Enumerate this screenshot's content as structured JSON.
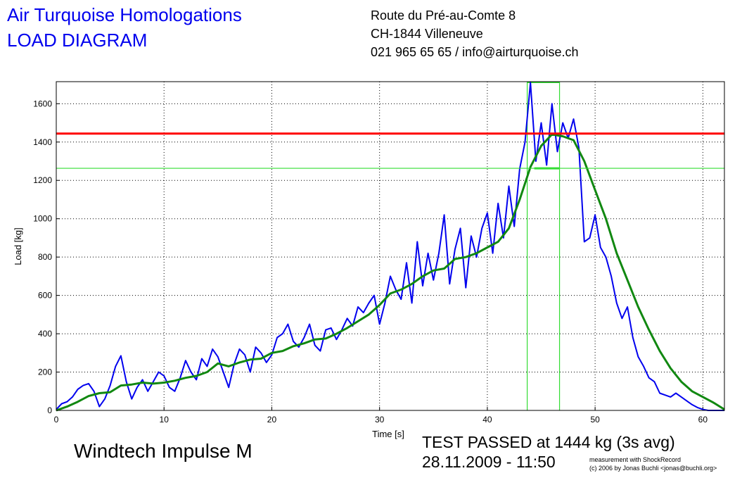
{
  "header": {
    "title": [
      "Air Turquoise Homologations",
      "LOAD DIAGRAM"
    ],
    "address": [
      "Route du Pré-au-Comte 8",
      "CH-1844 Villeneuve",
      "021 965 65 65 / info@airturquoise.ch"
    ]
  },
  "footer": {
    "wing": "Windtech Impulse M",
    "result": "TEST PASSED at 1444 kg (3s avg)",
    "date": "28.11.2009 - 11:50",
    "credit": [
      "measurement with ShockRecord",
      "(c) 2006 by Jonas Buchli <jonas@buchli.org>"
    ]
  },
  "chart_data": {
    "type": "line",
    "x_label": "Time [s]",
    "y_label": "Load [kg]",
    "xlim": [
      0,
      62
    ],
    "ylim": [
      0,
      1715
    ],
    "xticks": [
      0,
      10,
      20,
      30,
      40,
      50,
      60
    ],
    "yticks": [
      0,
      200,
      400,
      600,
      800,
      1000,
      1200,
      1400,
      1600
    ],
    "grid": true,
    "hlines": [
      {
        "value": 1444,
        "color": "#ff0000"
      },
      {
        "value": 1263,
        "color": "#33dd33"
      }
    ],
    "window": {
      "xlim": [
        43.7,
        46.7
      ],
      "color": "#33dd33"
    },
    "series": [
      {
        "color": "#0000ee",
        "x": [
          0,
          0.5,
          1,
          1.5,
          2,
          2.5,
          3,
          3.5,
          4,
          4.5,
          5,
          5.5,
          6,
          6.5,
          7,
          7.5,
          8,
          8.5,
          9,
          9.5,
          10,
          10.5,
          11,
          11.5,
          12,
          12.5,
          13,
          13.5,
          14,
          14.5,
          15,
          15.5,
          16,
          16.5,
          17,
          17.5,
          18,
          18.5,
          19,
          19.5,
          20,
          20.5,
          21,
          21.5,
          22,
          22.5,
          23,
          23.5,
          24,
          24.5,
          25,
          25.5,
          26,
          26.5,
          27,
          27.5,
          28,
          28.5,
          29,
          29.5,
          30,
          30.5,
          31,
          31.5,
          32,
          32.5,
          33,
          33.5,
          34,
          34.5,
          35,
          35.5,
          36,
          36.5,
          37,
          37.5,
          38,
          38.5,
          39,
          39.5,
          40,
          40.5,
          41,
          41.5,
          42,
          42.5,
          43,
          43.5,
          44,
          44.5,
          45,
          45.5,
          46,
          46.5,
          47,
          47.5,
          48,
          48.5,
          49,
          49.5,
          50,
          50.5,
          51,
          51.5,
          52,
          52.5,
          53,
          53.5,
          54,
          54.5,
          55,
          55.5,
          56,
          56.5,
          57,
          57.5,
          58,
          58.5,
          59,
          59.5,
          60,
          60.5,
          61,
          61.5,
          62
        ],
        "values": [
          5,
          35,
          45,
          70,
          110,
          130,
          140,
          100,
          20,
          60,
          130,
          230,
          285,
          150,
          60,
          120,
          160,
          100,
          150,
          200,
          180,
          120,
          100,
          170,
          260,
          200,
          160,
          270,
          230,
          320,
          280,
          200,
          120,
          240,
          320,
          290,
          200,
          330,
          300,
          250,
          290,
          380,
          400,
          450,
          360,
          330,
          380,
          450,
          340,
          310,
          420,
          430,
          370,
          420,
          480,
          440,
          540,
          510,
          560,
          600,
          450,
          560,
          700,
          630,
          580,
          770,
          560,
          880,
          650,
          820,
          680,
          820,
          1020,
          660,
          840,
          950,
          640,
          910,
          800,
          950,
          1030,
          820,
          1080,
          900,
          1170,
          960,
          1260,
          1400,
          1710,
          1300,
          1500,
          1280,
          1600,
          1350,
          1500,
          1420,
          1520,
          1370,
          880,
          900,
          1020,
          850,
          800,
          700,
          560,
          480,
          540,
          380,
          280,
          230,
          170,
          150,
          90,
          80,
          70,
          90,
          70,
          50,
          30,
          15,
          5,
          0,
          0,
          0,
          0
        ]
      },
      {
        "color": "#118811",
        "x": [
          0,
          1,
          2,
          3,
          4,
          5,
          6,
          7,
          8,
          9,
          10,
          11,
          12,
          13,
          14,
          15,
          16,
          17,
          18,
          19,
          20,
          21,
          22,
          23,
          24,
          25,
          26,
          27,
          28,
          29,
          30,
          31,
          32,
          33,
          34,
          35,
          36,
          37,
          38,
          39,
          40,
          41,
          42,
          43,
          44,
          45,
          46,
          47,
          48,
          49,
          50,
          51,
          52,
          53,
          54,
          55,
          56,
          57,
          58,
          59,
          60,
          61,
          62
        ],
        "values": [
          0,
          20,
          45,
          75,
          90,
          95,
          130,
          135,
          145,
          140,
          145,
          155,
          170,
          180,
          200,
          245,
          230,
          250,
          265,
          270,
          300,
          310,
          335,
          350,
          370,
          375,
          400,
          430,
          465,
          500,
          550,
          610,
          630,
          660,
          700,
          730,
          740,
          790,
          800,
          820,
          850,
          880,
          950,
          1100,
          1270,
          1380,
          1440,
          1430,
          1410,
          1300,
          1150,
          1000,
          820,
          680,
          540,
          420,
          310,
          220,
          150,
          100,
          70,
          40,
          5
        ]
      }
    ]
  }
}
